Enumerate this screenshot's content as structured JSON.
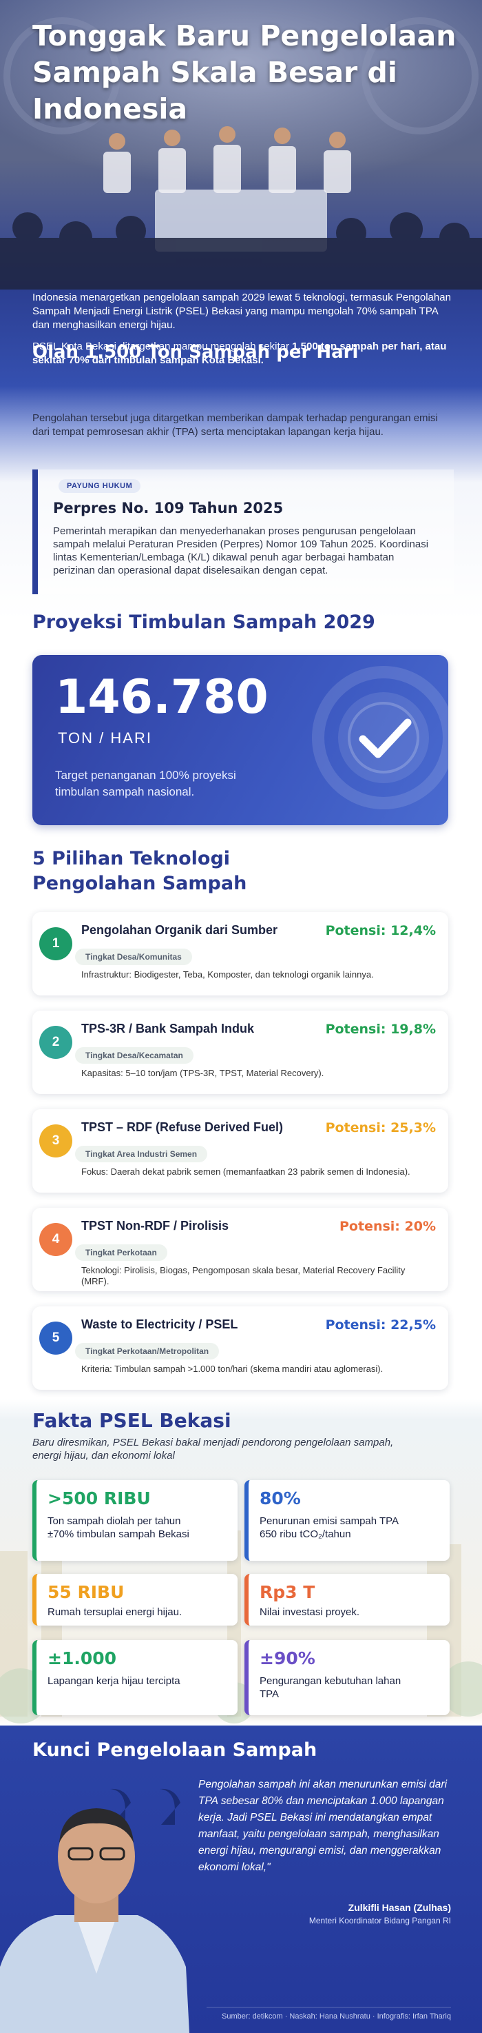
{
  "header": {
    "title": "Tonggak Baru Pengelolaan Sampah Skala Besar di Indonesia"
  },
  "intro": "Indonesia menargetkan pengelolaan sampah 2029 lewat 5 teknologi, termasuk Pengolahan Sampah Menjadi Energi Listrik (PSEL) Bekasi yang mampu mengolah 70% sampah TPA dan menghasilkan energi hijau.",
  "section_olah": {
    "heading": "Olah 1.500 Ton Sampah per Hari",
    "paragraphs": [
      [
        {
          "text": "PSEL Kota Bekasi ditargetkan mampu mengolah sekitar "
        },
        {
          "text": "1.500 ton sampah per hari, atau sekitar 70% dari timbulan sampah Kota Bekasi.",
          "bold": true
        }
      ],
      [
        {
          "text": "Pengolahan tersebut juga ditargetkan memberikan dampak terhadap pengurangan emisi dari tempat pemrosesan akhir (TPA) serta menciptakan lapangan kerja hijau."
        }
      ]
    ]
  },
  "legal": {
    "tag": "PAYUNG HUKUM",
    "title": "Perpres No. 109 Tahun 2025",
    "body": "Pemerintah merapikan dan menyederhanakan proses pengurusan pengelolaan sampah melalui Peraturan Presiden (Perpres) Nomor 109 Tahun 2025. Koordinasi lintas Kementerian/Lembaga (K/L) dikawal penuh agar berbagai hambatan perizinan dan operasional dapat diselesaikan dengan cepat."
  },
  "projection": {
    "heading": "Proyeksi Timbulan Sampah 2029",
    "value": "146.780",
    "unit": "TON / HARI",
    "note": "Target penanganan 100% proyeksi timbulan sampah nasional."
  },
  "technologies": {
    "heading": "5 Pilihan Teknologi Pengolahan Sampah",
    "items": [
      {
        "number": "1",
        "title": "Pengolahan Organik dari Sumber",
        "potential": "Potensi: 12,4%",
        "level": "Tingkat Desa/Komunitas",
        "detail": "Infrastruktur: Biodigester, Teba, Komposter, dan teknologi organik lainnya.",
        "color": "#1d9b68",
        "potential_color": "#24a153"
      },
      {
        "number": "2",
        "title": "TPS-3R / Bank Sampah Induk",
        "potential": "Potensi: 19,8%",
        "level": "Tingkat Desa/Kecamatan",
        "detail": "Kapasitas: 5–10 ton/jam (TPS-3R, TPST, Material Recovery).",
        "color": "#2fa595",
        "potential_color": "#24a153"
      },
      {
        "number": "3",
        "title": "TPST – RDF (Refuse Derived Fuel)",
        "potential": "Potensi: 25,3%",
        "level": "Tingkat Area Industri Semen",
        "detail": "Fokus: Daerah dekat pabrik semen (memanfaatkan 23 pabrik semen di Indonesia).",
        "color": "#f0b12a",
        "potential_color": "#efa722"
      },
      {
        "number": "4",
        "title": "TPST Non-RDF / Pirolisis",
        "potential": "Potensi: 20%",
        "level": "Tingkat Perkotaan",
        "detail": "Teknologi: Pirolisis, Biogas, Pengomposan skala besar, Material Recovery Facility (MRF).",
        "color": "#ef7a45",
        "potential_color": "#ea6e3a"
      },
      {
        "number": "5",
        "title": "Waste to Electricity / PSEL",
        "potential": "Potensi: 22,5%",
        "level": "Tingkat Perkotaan/Metropolitan",
        "detail": "Kriteria: Timbulan sampah >1.000 ton/hari (skema mandiri atau aglomerasi).",
        "color": "#2d63c4",
        "potential_color": "#2d5bc4"
      }
    ]
  },
  "facts": {
    "heading": "Fakta PSEL Bekasi",
    "subtitle": "Baru diresmikan, PSEL Bekasi bakal menjadi pendorong pengelolaan sampah, energi hijau, dan ekonomi lokal",
    "items": [
      {
        "value": ">500 RIBU",
        "desc": "Ton sampah diolah per tahun ±70% timbulan sampah Bekasi",
        "color": "#1fa463"
      },
      {
        "value": "80%",
        "desc": "Penurunan emisi sampah TPA 650 ribu tCO₂/tahun",
        "color": "#2e63c9"
      },
      {
        "value": "55 RIBU",
        "desc": "Rumah tersuplai energi hijau.",
        "color": "#f0a020"
      },
      {
        "value": "Rp3 T",
        "desc": "Nilai investasi proyek.",
        "color": "#e8683a"
      },
      {
        "value": "±1.000",
        "desc": "Lapangan kerja hijau tercipta",
        "color": "#1fa463"
      },
      {
        "value": "±90%",
        "desc": "Pengurangan kebutuhan lahan TPA",
        "color": "#6a4fc6"
      }
    ]
  },
  "quote": {
    "heading": "Kunci Pengelolaan Sampah",
    "text": "Pengolahan sampah ini akan menurunkan emisi dari TPA sebesar 80% dan menciptakan 1.000 lapangan kerja. Jadi PSEL Bekasi ini mendatangkan empat manfaat, yaitu pengelolaan sampah, menghasilkan energi hijau, mengurangi emisi, dan menggerakkan ekonomi lokal,\"",
    "speaker": "Zulkifli Hasan (Zulhas)",
    "role": "Menteri Koordinator Bidang Pangan RI"
  },
  "source": "Sumber: detikcom · Naskah: Hana Nushratu · Infografis: Irfan Thariq"
}
